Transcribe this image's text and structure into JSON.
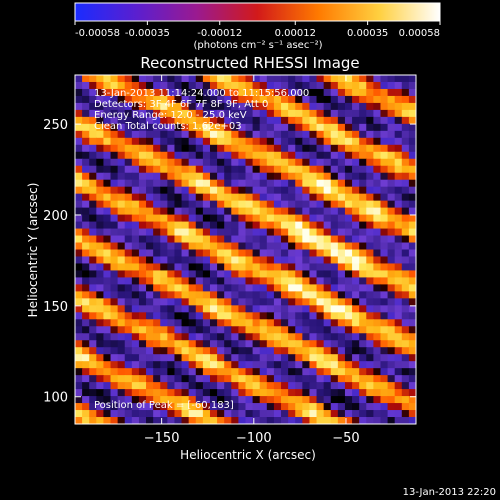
{
  "colorbar": {
    "ticks": [
      "-0.00058",
      "-0.00035",
      "-0.00012",
      "0.00012",
      "0.00035",
      "0.00058"
    ],
    "tick_values": [
      -0.00058,
      -0.00035,
      -0.00012,
      0.00012,
      0.00035,
      0.00058
    ],
    "units_label": "(photons cm⁻² s⁻¹ asec⁻²)",
    "colors": [
      "#1a2cff",
      "#5a1fd0",
      "#9a1a90",
      "#d21a1a",
      "#ff7a00",
      "#ffd040",
      "#ffffff"
    ]
  },
  "chart_data": {
    "type": "heatmap",
    "title": "Reconstructed RHESSI Image",
    "xlabel": "Heliocentric X (arcsec)",
    "ylabel": "Heliocentric Y (arcsec)",
    "xlim": [
      -197,
      -12
    ],
    "ylim": [
      85,
      277
    ],
    "xticks": [
      -150,
      -100,
      -50
    ],
    "yticks": [
      100,
      150,
      200,
      250
    ],
    "xtick_labels": [
      "−150",
      "−100",
      "−50"
    ],
    "ytick_labels": [
      "100",
      "150",
      "200",
      "250"
    ],
    "annotations": [
      "13-Jan-2013 11:14:24.000 to 11:15:56.000",
      "Detectors: 3F 4F 6F 7F 8F 9F, Att 0",
      "Energy Range: 12.0 - 25.0 keV",
      "Clean    Total counts: 1.62e+03"
    ],
    "peak_label": "Position of Peak = [-60,183]",
    "peak": [
      -60,
      183
    ],
    "fringe_slope": -0.5,
    "fringe_period": 32
  },
  "footer": {
    "timestamp": "13-Jan-2013 22:20"
  }
}
